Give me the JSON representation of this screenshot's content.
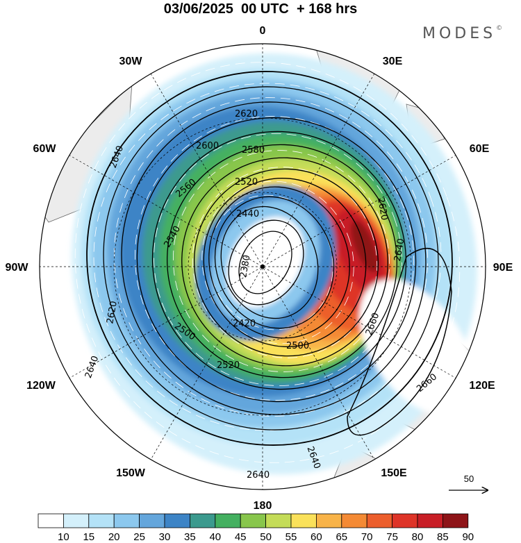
{
  "title": "03/06/2025  00 UTC  + 168 hrs",
  "brand": {
    "text": "MODES",
    "mark": "©"
  },
  "longitude_labels": [
    {
      "id": "lon-0",
      "text": "0"
    },
    {
      "id": "lon-30e",
      "text": "30E"
    },
    {
      "id": "lon-60e",
      "text": "60E"
    },
    {
      "id": "lon-90e",
      "text": "90E"
    },
    {
      "id": "lon-120e",
      "text": "120E"
    },
    {
      "id": "lon-150e",
      "text": "150E"
    },
    {
      "id": "lon-180",
      "text": "180"
    },
    {
      "id": "lon-150w",
      "text": "150W"
    },
    {
      "id": "lon-120w",
      "text": "120W"
    },
    {
      "id": "lon-90w",
      "text": "90W"
    },
    {
      "id": "lon-60w",
      "text": "60W"
    },
    {
      "id": "lon-30w",
      "text": "30W"
    }
  ],
  "contour_labels": [
    "2620",
    "2600",
    "2580",
    "2520",
    "2640",
    "2560",
    "2440",
    "2540",
    "2380",
    "2420",
    "2500",
    "2660"
  ],
  "colorbar": {
    "ticks": [
      "10",
      "15",
      "20",
      "25",
      "30",
      "35",
      "40",
      "45",
      "50",
      "55",
      "60",
      "65",
      "70",
      "75",
      "80",
      "85",
      "90"
    ],
    "colors": [
      "#ffffff",
      "#d4f0fb",
      "#b4e2f7",
      "#8cc8ee",
      "#64a6dc",
      "#3d84c6",
      "#3c9a8e",
      "#44b060",
      "#88c64c",
      "#c4dc58",
      "#fae15a",
      "#f8b348",
      "#f48a34",
      "#ec5e2c",
      "#de3428",
      "#c81e26",
      "#8e1418"
    ]
  },
  "wind_reference": {
    "label": "50"
  },
  "land_color": "#ececec",
  "contour_color": "#000000",
  "vector_color": "#ffffff"
}
